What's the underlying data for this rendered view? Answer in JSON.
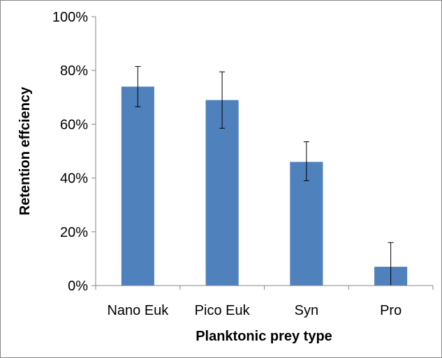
{
  "chart_data": {
    "type": "bar",
    "title": "",
    "xlabel": "Planktonic prey type",
    "ylabel": "Retention effciency",
    "categories": [
      "Nano Euk",
      "Pico Euk",
      "Syn",
      "Pro"
    ],
    "values": [
      74,
      69,
      46,
      7
    ],
    "error_low": [
      66.5,
      58.5,
      39,
      0
    ],
    "error_high": [
      81.5,
      79.5,
      53.5,
      16
    ],
    "ylim": [
      0,
      100
    ],
    "yticks": [
      0,
      20,
      40,
      60,
      80,
      100
    ],
    "ytick_labels": [
      "0%",
      "20%",
      "40%",
      "60%",
      "80%",
      "100%"
    ],
    "grid": false,
    "bar_color": "#4f81bd",
    "legend": "none"
  }
}
